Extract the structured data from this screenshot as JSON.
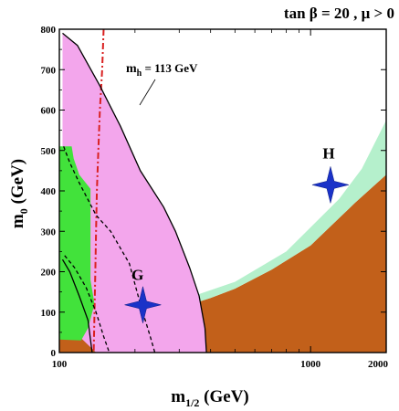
{
  "chart_data": {
    "type": "area",
    "title": "tan β = 20 ,  μ > 0",
    "xlabel": "m",
    "xlabel_sub": "1/2",
    "xlabel_unit": " (GeV)",
    "ylabel": "m",
    "ylabel_sub": "0",
    "ylabel_unit": " (GeV)",
    "x_scale": "log",
    "xlim": [
      100,
      2000
    ],
    "ylim": [
      0,
      800
    ],
    "x_ticks": [
      100,
      1000,
      2000
    ],
    "y_ticks": [
      0,
      100,
      200,
      300,
      400,
      500,
      600,
      700,
      800
    ],
    "grid": false,
    "regions": [
      {
        "name": "stau-lsp-excluded",
        "color": "#c2601a",
        "points": [
          [
            100,
            35
          ],
          [
            130,
            52
          ],
          [
            200,
            82
          ],
          [
            300,
            110
          ],
          [
            400,
            135
          ],
          [
            500,
            158
          ],
          [
            700,
            205
          ],
          [
            1000,
            265
          ],
          [
            1500,
            370
          ],
          [
            2000,
            440
          ],
          [
            2000,
            0
          ],
          [
            100,
            0
          ]
        ]
      },
      {
        "name": "relic-density-allowed",
        "color": "#b5f0cc",
        "points": [
          [
            140,
            80
          ],
          [
            200,
            92
          ],
          [
            300,
            128
          ],
          [
            500,
            175
          ],
          [
            800,
            250
          ],
          [
            1300,
            380
          ],
          [
            1600,
            455
          ],
          [
            2000,
            575
          ],
          [
            2000,
            440
          ],
          [
            1500,
            370
          ],
          [
            1000,
            265
          ],
          [
            700,
            205
          ],
          [
            500,
            158
          ],
          [
            400,
            135
          ],
          [
            300,
            110
          ],
          [
            200,
            82
          ],
          [
            140,
            60
          ]
        ]
      },
      {
        "name": "g-2-favoured",
        "color": "#f3a6ec",
        "points": [
          [
            103,
            790
          ],
          [
            118,
            760
          ],
          [
            145,
            660
          ],
          [
            175,
            560
          ],
          [
            210,
            450
          ],
          [
            260,
            360
          ],
          [
            290,
            300
          ],
          [
            330,
            210
          ],
          [
            360,
            140
          ],
          [
            380,
            60
          ],
          [
            385,
            0
          ],
          [
            140,
            0
          ],
          [
            120,
            40
          ],
          [
            110,
            120
          ],
          [
            105,
            260
          ],
          [
            103,
            500
          ]
        ]
      },
      {
        "name": "b-s-gamma-excluded",
        "color": "#42e23b",
        "points": [
          [
            100,
            510
          ],
          [
            112,
            510
          ],
          [
            114,
            480
          ],
          [
            120,
            440
          ],
          [
            133,
            405
          ],
          [
            133,
            180
          ],
          [
            138,
            120
          ],
          [
            130,
            60
          ],
          [
            122,
            30
          ],
          [
            100,
            32
          ]
        ]
      }
    ],
    "lines": [
      {
        "name": "mh-113-contour",
        "label": "m",
        "label_sub": "h",
        "label_rest": " = 113 GeV",
        "color": "#d92020",
        "style": "dashdot",
        "points": [
          [
            150,
            800
          ],
          [
            148,
            700
          ],
          [
            145,
            600
          ],
          [
            143,
            500
          ],
          [
            141,
            400
          ],
          [
            140,
            300
          ],
          [
            139,
            200
          ],
          [
            138,
            100
          ],
          [
            137,
            0
          ]
        ]
      },
      {
        "name": "g-2-boundary",
        "color": "#000000",
        "style": "solid",
        "points": [
          [
            103,
            790
          ],
          [
            118,
            760
          ],
          [
            145,
            660
          ],
          [
            175,
            560
          ],
          [
            210,
            450
          ],
          [
            260,
            360
          ],
          [
            290,
            300
          ],
          [
            330,
            210
          ],
          [
            360,
            140
          ],
          [
            380,
            60
          ],
          [
            385,
            0
          ]
        ]
      },
      {
        "name": "g-2-inner-dashed",
        "color": "#000000",
        "style": "dashed",
        "points": [
          [
            104,
            510
          ],
          [
            110,
            470
          ],
          [
            120,
            420
          ],
          [
            140,
            340
          ],
          [
            160,
            300
          ],
          [
            190,
            220
          ],
          [
            210,
            120
          ],
          [
            230,
            40
          ],
          [
            240,
            0
          ]
        ]
      },
      {
        "name": "lep-chargino-dashed",
        "color": "#000000",
        "style": "dashed",
        "points": [
          [
            105,
            240
          ],
          [
            115,
            210
          ],
          [
            128,
            160
          ],
          [
            140,
            100
          ],
          [
            150,
            40
          ],
          [
            158,
            0
          ]
        ]
      },
      {
        "name": "lep-higgs-solid",
        "color": "#000000",
        "style": "solid",
        "points": [
          [
            103,
            230
          ],
          [
            110,
            200
          ],
          [
            120,
            140
          ],
          [
            130,
            80
          ],
          [
            135,
            0
          ]
        ]
      }
    ],
    "markers": [
      {
        "name": "G",
        "label": "G",
        "x": 215,
        "y": 118,
        "label_x": 205,
        "label_y": 180,
        "color": "#1a32c8"
      },
      {
        "name": "H",
        "label": "H",
        "x": 1200,
        "y": 415,
        "label_x": 1180,
        "label_y": 480,
        "color": "#1a32c8"
      }
    ]
  }
}
